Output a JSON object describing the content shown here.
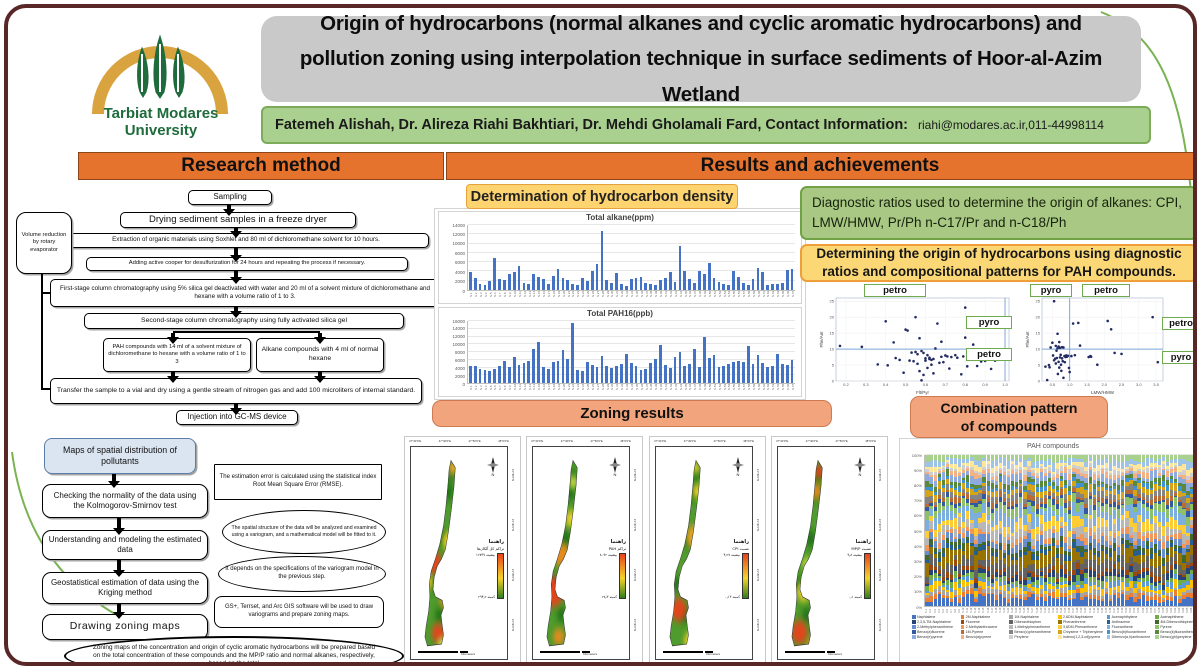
{
  "header": {
    "title": "Origin of hydrocarbons (normal alkanes and cyclic aromatic hydrocarbons) and pollution zoning using interpolation technique in surface sediments of Hoor-al-Azim Wetland",
    "authors": "Fatemeh Alishah, Dr. Alireza Riahi Bakhtiari, Dr. Mehdi Gholamali Fard, Contact Information:",
    "contact": "riahi@modares.ac.ir,011-44998114"
  },
  "logo": {
    "name_line1": "Tarbiat Modares",
    "name_line2": "University"
  },
  "sections": {
    "left": "Research method",
    "right": "Results and achievements"
  },
  "method_flow": {
    "side_box": "Volume reduction by rotary evaporator",
    "steps": [
      "Sampling",
      "Drying sediment samples in a freeze dryer",
      "Extraction of organic materials using Soxhlet and 80 ml of dichloromethane solvent for 10 hours.",
      "Adding active cooper for desulfurization for 24 hours and repeating the process if necessary.",
      "First-stage column chromatography using 5% silica gel deactivated with water and 20 ml of a solvent mixture of dichloromethane and hexane with a volume ratio of 1 to 3.",
      "Second-stage column chromatography using fully activated silica gel",
      "PAH compounds with 14 ml of a solvent mixture of dichloromethane to hexane with a volume ratio of 1 to 3",
      "Alkane compounds with 4 ml of normal hexane",
      "Transfer the sample to a vial and dry using a gentle stream of nitrogen gas and add 100 microliters of internal standard.",
      "Injection into GC-MS device"
    ]
  },
  "analysis_flow": {
    "steps": [
      "Maps of spatial distribution of pollutants",
      "Checking the normality of the data using the Kolmogorov-Smirnov test",
      "Understanding and modeling the estimated data",
      "Geostatistical estimation of data using the Kriging method",
      "Drawing zoning maps"
    ],
    "callouts": [
      "The estimation error is calculated using the statistical index Root Mean Square Error (RMSE).",
      "The spatial structure of the data will be analyzed and examined using a variogram, and a mathematical model will be fitted to it.",
      "It depends on the specifications of the variogram model in the previous step.",
      "GS+, Terrset, and Arc GIS software will be used to draw variograms and prepare zoning maps."
    ],
    "conclusion": "Zoning maps of the concentration and origin of cyclic aromatic hydrocarbons will be prepared based on the total concentration of these compounds and the MP/P ratio and normal alkanes, respectively, based on the total"
  },
  "results_labels": {
    "density_header": "Determination of hydrocarbon density",
    "diagnostic_box": "Diagnostic ratios used to determine the origin of alkanes: CPI, LMW/HMW, Pr/Ph n-C17/Pr and n-C18/Ph",
    "pah_origin_box": "Determining the origin of hydrocarbons using diagnostic ratios and compositional patterns for PAH compounds.",
    "zoning_header": "Zoning results",
    "combo_header": "Combination pattern of compounds"
  },
  "stations": [
    "S.1",
    "S.2",
    "S.3",
    "S.4",
    "S.5",
    "S.6",
    "S.7",
    "S.8",
    "S.9",
    "S.10",
    "S.11",
    "S.12",
    "S.13",
    "S.14",
    "S.15",
    "S.16",
    "S.17",
    "S.18",
    "S.19",
    "S.20",
    "S.21",
    "S.22",
    "S.23",
    "S.24",
    "S.25",
    "S.26",
    "S.27",
    "S.28",
    "S.29",
    "S.30",
    "S.31",
    "S.32",
    "S.33",
    "S.34",
    "S.35",
    "S.36",
    "S.37",
    "S.38",
    "S.39",
    "S.40",
    "S.41",
    "S.42",
    "S.43",
    "S.44",
    "S.45",
    "S.46",
    "S.47",
    "S.48",
    "S.49",
    "S.50",
    "S.51",
    "S.52",
    "S.53",
    "S.54",
    "S.55",
    "S.56",
    "S.57",
    "S.58",
    "S.59",
    "S.60",
    "S.61",
    "S.62",
    "S.63",
    "S.64",
    "S.65",
    "S.66",
    "S.67"
  ],
  "chart_data": [
    {
      "id": "total_alkane",
      "type": "bar",
      "title": "Total alkane(ppm)",
      "ylim": [
        0,
        14000
      ],
      "ytick_step": 2000,
      "bar_color": "#4472c4",
      "grid": true,
      "categories_ref": "stations",
      "values": [
        3800,
        2600,
        1300,
        1100,
        1900,
        7000,
        2400,
        2200,
        3400,
        3900,
        5200,
        1500,
        1200,
        3500,
        2700,
        2300,
        1400,
        3000,
        4600,
        2600,
        2100,
        1300,
        1100,
        2500,
        2000,
        4200,
        5600,
        12700,
        2200,
        1600,
        3600,
        1200,
        900,
        2400,
        2600,
        2700,
        1500,
        1300,
        1100,
        2100,
        2600,
        3800,
        1700,
        9500,
        4100,
        2400,
        1600,
        4200,
        3400,
        5800,
        2500,
        1700,
        1200,
        1000,
        4000,
        2900,
        1500,
        1100,
        2300,
        4700,
        3900,
        1000,
        1200,
        1300,
        1500,
        4400,
        4500
      ]
    },
    {
      "id": "total_pah",
      "type": "bar",
      "title": "Total PAH16(ppb)",
      "ylim": [
        0,
        16000
      ],
      "ytick_step": 2000,
      "bar_color": "#4472c4",
      "grid": true,
      "categories_ref": "stations",
      "values": [
        4300,
        4500,
        3600,
        3400,
        3100,
        3600,
        4400,
        5700,
        4200,
        6800,
        4700,
        5200,
        5600,
        8800,
        10600,
        4100,
        3500,
        5300,
        5600,
        8500,
        6200,
        15500,
        3400,
        3000,
        5500,
        4600,
        4100,
        6900,
        4500,
        4000,
        4300,
        4900,
        7400,
        5200,
        4400,
        3400,
        3600,
        5100,
        6100,
        9700,
        4700,
        4000,
        6600,
        7900,
        4400,
        5000,
        8900,
        4200,
        11800,
        6500,
        7200,
        4100,
        4400,
        4800,
        5300,
        5600,
        5400,
        9600,
        5000,
        7300,
        5200,
        4200,
        4400,
        7400,
        5000,
        4700,
        5900
      ]
    },
    {
      "id": "scatter_flt_pyr",
      "type": "scatter",
      "xlabel": "Flt/Pyr",
      "ylabel": "Phe/Ant",
      "xlim": [
        0.15,
        1.02
      ],
      "xticks": [
        0.2,
        0.3,
        0.4,
        0.5,
        0.6,
        0.7,
        0.8,
        0.9,
        1.0
      ],
      "ylim": [
        0,
        26
      ],
      "yticks": [
        0,
        5,
        10,
        15,
        20,
        25
      ],
      "hline": 10,
      "vline": 1.0,
      "top_labels": [
        "petro"
      ],
      "right_labels": [
        "pyro",
        "petro"
      ],
      "point_color": "#232c62",
      "grid": true,
      "points": [
        [
          0.17,
          11
        ],
        [
          0.28,
          10.7
        ],
        [
          0.36,
          5.2
        ],
        [
          0.4,
          18.7
        ],
        [
          0.41,
          4.9
        ],
        [
          0.44,
          12.1
        ],
        [
          0.45,
          7.2
        ],
        [
          0.47,
          6.6
        ],
        [
          0.49,
          2.6
        ],
        [
          0.5,
          16.1
        ],
        [
          0.51,
          15.8
        ],
        [
          0.52,
          6.4
        ],
        [
          0.53,
          8.9
        ],
        [
          0.54,
          6.2
        ],
        [
          0.55,
          20.0
        ],
        [
          0.55,
          9.1
        ],
        [
          0.56,
          8.4
        ],
        [
          0.56,
          5.4
        ],
        [
          0.57,
          13.4
        ],
        [
          0.57,
          3.1
        ],
        [
          0.58,
          0.2
        ],
        [
          0.58,
          9.4
        ],
        [
          0.59,
          8.8
        ],
        [
          0.59,
          1.9
        ],
        [
          0.6,
          7.1
        ],
        [
          0.6,
          6.4
        ],
        [
          0.61,
          8.1
        ],
        [
          0.61,
          4.1
        ],
        [
          0.62,
          6.9
        ],
        [
          0.62,
          7.3
        ],
        [
          0.63,
          6.6
        ],
        [
          0.63,
          5.1
        ],
        [
          0.64,
          6.9
        ],
        [
          0.64,
          2.4
        ],
        [
          0.65,
          10.2
        ],
        [
          0.66,
          18.0
        ],
        [
          0.67,
          5.7
        ],
        [
          0.68,
          12.3
        ],
        [
          0.68,
          7.6
        ],
        [
          0.69,
          5.9
        ],
        [
          0.7,
          8.0
        ],
        [
          0.71,
          7.7
        ],
        [
          0.72,
          3.9
        ],
        [
          0.73,
          7.5
        ],
        [
          0.75,
          8.1
        ],
        [
          0.76,
          7.3
        ],
        [
          0.78,
          2.1
        ],
        [
          0.79,
          7.7
        ],
        [
          0.8,
          13.6
        ],
        [
          0.8,
          23.0
        ],
        [
          0.81,
          4.6
        ],
        [
          0.82,
          7.2
        ],
        [
          0.84,
          11.4
        ],
        [
          0.86,
          4.7
        ],
        [
          0.88,
          6.1
        ],
        [
          0.9,
          6.3
        ],
        [
          0.93,
          3.8
        ],
        [
          0.95,
          6.4
        ]
      ]
    },
    {
      "id": "scatter_lmw_hmw",
      "type": "scatter",
      "xlabel": "LMW/HMW",
      "ylabel": "Phe/Ant",
      "xlim": [
        0.2,
        3.7
      ],
      "xticks": [
        0.5,
        1.0,
        1.5,
        2.0,
        2.5,
        3.0,
        3.5
      ],
      "ylim": [
        0,
        26
      ],
      "yticks": [
        0,
        5,
        10,
        15,
        20,
        25
      ],
      "hline": 10,
      "vline": 1.0,
      "top_labels": [
        "pyro",
        "petro"
      ],
      "right_labels": [
        "petro",
        "pyro"
      ],
      "point_color": "#232c62",
      "grid": true,
      "points": [
        [
          0.3,
          4.5
        ],
        [
          0.35,
          0.3
        ],
        [
          0.4,
          5.0
        ],
        [
          0.42,
          4.3
        ],
        [
          0.45,
          10.5
        ],
        [
          0.5,
          12.0
        ],
        [
          0.52,
          8.0
        ],
        [
          0.55,
          6.5
        ],
        [
          0.55,
          25.0
        ],
        [
          0.58,
          7.0
        ],
        [
          0.6,
          11.0
        ],
        [
          0.6,
          5.5
        ],
        [
          0.62,
          9.5
        ],
        [
          0.63,
          7.2
        ],
        [
          0.65,
          14.8
        ],
        [
          0.65,
          10.3
        ],
        [
          0.66,
          2.2
        ],
        [
          0.68,
          10.8
        ],
        [
          0.68,
          6.0
        ],
        [
          0.7,
          12.2
        ],
        [
          0.7,
          4.2
        ],
        [
          0.72,
          10.4
        ],
        [
          0.72,
          7.4
        ],
        [
          0.74,
          8.2
        ],
        [
          0.75,
          5.1
        ],
        [
          0.76,
          3.2
        ],
        [
          0.78,
          10.6
        ],
        [
          0.78,
          7.1
        ],
        [
          0.8,
          6.2
        ],
        [
          0.82,
          10.5
        ],
        [
          0.82,
          1.0
        ],
        [
          0.85,
          7.8
        ],
        [
          0.86,
          5.9
        ],
        [
          0.88,
          7.5
        ],
        [
          0.9,
          8.0
        ],
        [
          0.92,
          7.6
        ],
        [
          0.95,
          7.9
        ],
        [
          0.98,
          4.1
        ],
        [
          1.0,
          2.8
        ],
        [
          1.05,
          7.8
        ],
        [
          1.1,
          18.0
        ],
        [
          1.15,
          8.1
        ],
        [
          1.25,
          18.2
        ],
        [
          1.3,
          11.1
        ],
        [
          1.55,
          7.5
        ],
        [
          1.6,
          7.8
        ],
        [
          1.62,
          7.6
        ],
        [
          1.8,
          5.1
        ],
        [
          2.1,
          18.8
        ],
        [
          2.2,
          16.2
        ],
        [
          2.3,
          8.8
        ],
        [
          2.5,
          8.5
        ],
        [
          3.4,
          20.0
        ],
        [
          3.55,
          5.9
        ]
      ]
    },
    {
      "id": "pah_stacked",
      "type": "stacked100",
      "title": "PAH compounds",
      "categories_ref": "stations",
      "ylim": [
        0,
        100
      ],
      "ytick_step": 10,
      "grid": true,
      "compounds": [
        "Naphtalene",
        "2M-Naphtalene",
        "1M-Naphtalene",
        "2,6DM-Naphtalene",
        "Acenaphthylene",
        "Acenaphthene",
        "2,3,5-TM-Naphtalene",
        "Fluorene",
        "Dibenzothiophen",
        "Phenanthrene",
        "Anthracene",
        "4M-Dibenzothiophene",
        "2-Methylphenanthrene",
        "2-Methylanthracene",
        "1-Methylphenanthrene",
        "3,6DM-Phenanthrene",
        "Fluoranthene",
        "Pyrene",
        "Benzo(a)fluorene",
        "1M-Pyrene",
        "Benzo(c)phenanthrene",
        "Chrysene + Triphenylene",
        "Benzo(b)fluoranthene",
        "Benzo(k)fluoranthene",
        "Benzo(e)pyrene",
        "Benzo(a)pyrene",
        "Perylene",
        "Indeno(1,2,3-cd)pyrene",
        "Dibenzo(a,h)anthracene",
        "Benzo(ghi)perylene"
      ],
      "colors": [
        "#4472c4",
        "#ed7d31",
        "#a5a5a5",
        "#ffc000",
        "#5b9bd5",
        "#70ad47",
        "#264478",
        "#9e480e",
        "#636363",
        "#997300",
        "#255e91",
        "#43682b",
        "#698ed0",
        "#f1975a",
        "#b7b7b7",
        "#ffcd33",
        "#7cafdd",
        "#8cc168",
        "#335aa1",
        "#b96c34",
        "#848484",
        "#d6a416",
        "#4292cf",
        "#5a8a39",
        "#8faadc",
        "#f4b183",
        "#cfcfcf",
        "#ffe699",
        "#9dc3e6",
        "#a9d18e"
      ]
    }
  ],
  "maps": {
    "lon_labels": [
      "47°30'0\"E",
      "47°40'0\"E",
      "47°50'0\"E",
      "48°0'0\"E"
    ],
    "lat_labels": [
      "31°45'0\"N",
      "31°40'0\"N",
      "31°35'0\"N",
      "31°30'0\"N"
    ],
    "scale_label": "Kilometers",
    "compass_n": "N",
    "items": [
      {
        "legend_title": "راهنما",
        "layer": "تراکم کل آلکان‌ها",
        "max_label": "بیشینه ۱۲۷۳۷",
        "min_label": "کمینه ۲۹۴٫۲",
        "hotspots": [
          [
            62,
            14,
            8,
            "#f0a426"
          ],
          [
            30,
            118,
            13,
            "#e8421c"
          ],
          [
            38,
            196,
            11,
            "#e8421c"
          ],
          [
            52,
            158,
            12,
            "#f08a1e"
          ],
          [
            55,
            95,
            11,
            "#f5d327"
          ],
          [
            20,
            140,
            9,
            "#f5d327"
          ],
          [
            45,
            210,
            9,
            "#d7e24a"
          ]
        ]
      },
      {
        "legend_title": "راهنما",
        "layer": "تراکم PAH",
        "max_label": "بیشینه ۸۰۹۲",
        "min_label": "کمینه ۲۸٫۳",
        "hotspots": [
          [
            26,
            150,
            17,
            "#e8421c"
          ],
          [
            40,
            110,
            13,
            "#f08a1e"
          ],
          [
            55,
            70,
            9,
            "#f5d327"
          ],
          [
            60,
            180,
            11,
            "#f5d327"
          ],
          [
            35,
            200,
            9,
            "#f08a1e"
          ],
          [
            58,
            30,
            7,
            "#d7e24a"
          ]
        ]
      },
      {
        "legend_title": "راهنما",
        "layer": "نسبت CPI",
        "max_label": "بیشینه ۴٫۲۷",
        "min_label": "کمینه ۰٫۱۳",
        "hotspots": [
          [
            55,
            90,
            13,
            "#f0a426"
          ],
          [
            30,
            170,
            13,
            "#e8421c"
          ],
          [
            60,
            40,
            8,
            "#f5d327"
          ],
          [
            45,
            130,
            9,
            "#d7e24a"
          ],
          [
            50,
            205,
            11,
            "#f5d327"
          ],
          [
            58,
            14,
            6,
            "#f5d327"
          ]
        ]
      },
      {
        "legend_title": "راهنما",
        "layer": "نسبت MP/P",
        "max_label": "بیشینه ۹٫۸",
        "min_label": "کمینه ۰٫۱",
        "hotspots": [
          [
            60,
            18,
            8,
            "#e8421c"
          ],
          [
            55,
            40,
            9,
            "#f08a1e"
          ],
          [
            35,
            150,
            11,
            "#f5d327"
          ],
          [
            28,
            195,
            13,
            "#e8421c"
          ],
          [
            48,
            210,
            9,
            "#f08a1e"
          ],
          [
            40,
            120,
            7,
            "#d7e24a"
          ]
        ]
      }
    ]
  }
}
